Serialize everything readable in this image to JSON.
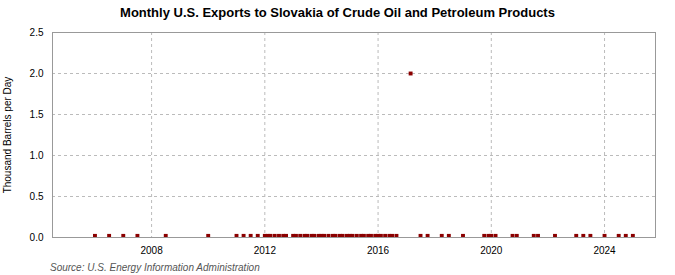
{
  "chart_data": {
    "type": "scatter",
    "title": "Monthly U.S. Exports to Slovakia of Crude Oil and Petroleum Products",
    "ylabel": "Thousand Barrels per Day",
    "source": "Source: U.S. Energy Information Administration",
    "xlim": [
      2004.5,
      2025.8
    ],
    "xticks": [
      2008,
      2012,
      2016,
      2020,
      2024
    ],
    "ylim": [
      0,
      2.5
    ],
    "yticks": [
      {
        "value": 0,
        "label": "0.0"
      },
      0.5,
      {
        "value": 1,
        "label": "1.0"
      },
      1.5,
      {
        "value": 2,
        "label": "2.0"
      },
      2.5
    ],
    "grid": true,
    "color": "#8B0000",
    "marker": "square",
    "x": [
      2006.0,
      2006.5,
      2007.0,
      2007.5,
      2008.5,
      2010.0,
      2011.0,
      2011.25,
      2011.5,
      2011.75,
      2012.0,
      2012.1,
      2012.2,
      2012.35,
      2012.5,
      2012.65,
      2012.75,
      2013.0,
      2013.1,
      2013.25,
      2013.4,
      2013.5,
      2013.65,
      2013.75,
      2013.9,
      2014.0,
      2014.1,
      2014.25,
      2014.4,
      2014.5,
      2014.65,
      2014.75,
      2014.9,
      2015.0,
      2015.1,
      2015.25,
      2015.4,
      2015.5,
      2015.65,
      2015.75,
      2015.9,
      2016.0,
      2016.1,
      2016.25,
      2016.4,
      2016.5,
      2016.65,
      2017.15,
      2017.5,
      2017.75,
      2018.25,
      2018.5,
      2019.0,
      2019.75,
      2019.9,
      2020.0,
      2020.15,
      2020.75,
      2020.9,
      2021.5,
      2021.65,
      2022.25,
      2023.0,
      2023.25,
      2023.5,
      2024.0,
      2024.5,
      2024.75,
      2025.0
    ],
    "values": [
      0.02,
      0.02,
      0.02,
      0.02,
      0.02,
      0.02,
      0.02,
      0.02,
      0.02,
      0.02,
      0.02,
      0.02,
      0.02,
      0.02,
      0.02,
      0.02,
      0.02,
      0.02,
      0.02,
      0.02,
      0.02,
      0.02,
      0.02,
      0.02,
      0.02,
      0.02,
      0.02,
      0.02,
      0.02,
      0.02,
      0.02,
      0.02,
      0.02,
      0.02,
      0.02,
      0.02,
      0.02,
      0.02,
      0.02,
      0.02,
      0.02,
      0.02,
      0.02,
      0.02,
      0.02,
      0.02,
      0.02,
      2.0,
      0.02,
      0.02,
      0.02,
      0.02,
      0.02,
      0.02,
      0.02,
      0.02,
      0.02,
      0.02,
      0.02,
      0.02,
      0.02,
      0.02,
      0.02,
      0.02,
      0.02,
      0.02,
      0.02,
      0.02,
      0.02
    ]
  }
}
